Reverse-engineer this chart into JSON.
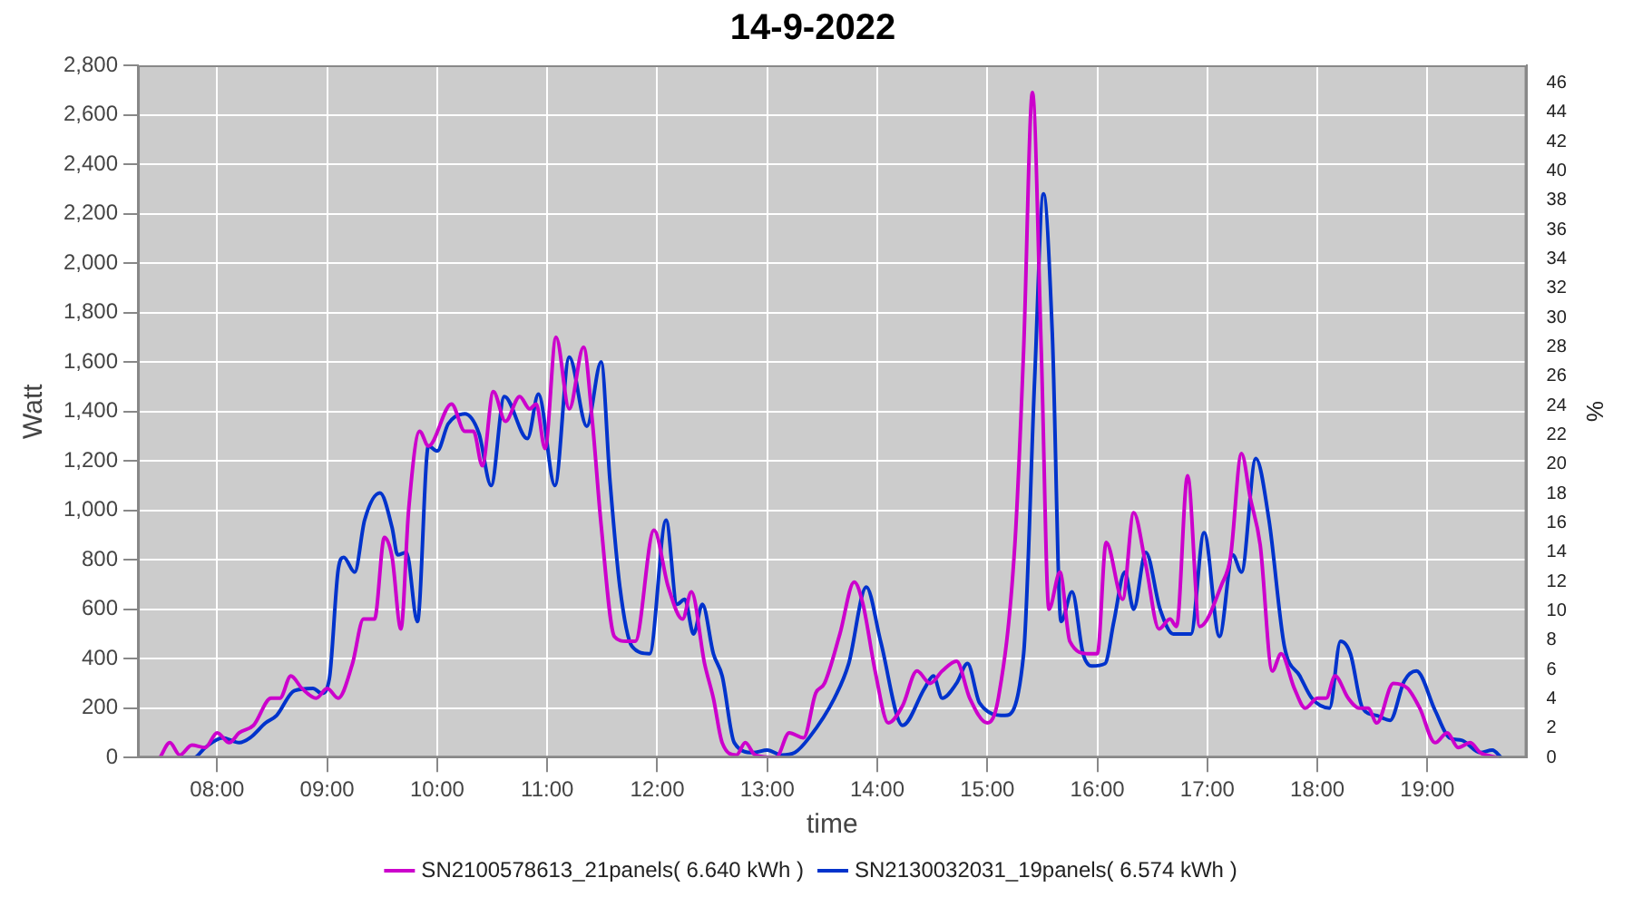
{
  "chart_data": {
    "type": "line",
    "title": "14-9-2022",
    "xlabel": "time",
    "ylabel": "Watt",
    "y2label": "%",
    "xlim": [
      7.28,
      19.9
    ],
    "xticks": [
      {
        "value": 8,
        "label": "08:00"
      },
      {
        "value": 9,
        "label": "09:00"
      },
      {
        "value": 10,
        "label": "10:00"
      },
      {
        "value": 11,
        "label": "11:00"
      },
      {
        "value": 12,
        "label": "12:00"
      },
      {
        "value": 13,
        "label": "13:00"
      },
      {
        "value": 14,
        "label": "14:00"
      },
      {
        "value": 15,
        "label": "15:00"
      },
      {
        "value": 16,
        "label": "16:00"
      },
      {
        "value": 17,
        "label": "17:00"
      },
      {
        "value": 18,
        "label": "18:00"
      },
      {
        "value": 19,
        "label": "19:00"
      }
    ],
    "ylim": [
      0,
      2800
    ],
    "yticks": [
      0,
      200,
      400,
      600,
      800,
      {
        "value": 1000,
        "label": "1,000"
      },
      {
        "value": 1200,
        "label": "1,200"
      },
      {
        "value": 1400,
        "label": "1,400"
      },
      {
        "value": 1600,
        "label": "1,600"
      },
      {
        "value": 1800,
        "label": "1,800"
      },
      {
        "value": 2000,
        "label": "2,000"
      },
      {
        "value": 2200,
        "label": "2,200"
      },
      {
        "value": 2400,
        "label": "2,400"
      },
      {
        "value": 2600,
        "label": "2,600"
      },
      {
        "value": 2800,
        "label": "2,800"
      }
    ],
    "y2lim": [
      0,
      47.2
    ],
    "y2ticks": [
      0,
      2,
      4,
      6,
      8,
      10,
      12,
      14,
      16,
      18,
      20,
      22,
      24,
      26,
      28,
      30,
      32,
      34,
      36,
      38,
      40,
      42,
      44,
      46
    ],
    "grid": true,
    "legend": "bottom",
    "series": [
      {
        "name": "SN2100578613_21panels( 6.640 kWh )",
        "color": "#cc00cc",
        "x": [
          7.48,
          7.57,
          7.66,
          7.77,
          7.89,
          8.0,
          8.11,
          8.2,
          8.33,
          8.49,
          8.57,
          8.67,
          8.77,
          8.9,
          9.0,
          9.1,
          9.23,
          9.33,
          9.43,
          9.52,
          9.59,
          9.67,
          9.74,
          9.84,
          9.92,
          10.13,
          10.25,
          10.33,
          10.41,
          10.51,
          10.62,
          10.75,
          10.84,
          10.9,
          10.98,
          11.08,
          11.2,
          11.33,
          11.41,
          11.49,
          11.61,
          11.72,
          11.8,
          11.97,
          12.1,
          12.23,
          12.31,
          12.43,
          12.51,
          12.59,
          12.72,
          12.8,
          12.89,
          13.08,
          13.2,
          13.33,
          13.44,
          13.52,
          13.66,
          13.79,
          13.87,
          13.98,
          14.1,
          14.23,
          14.36,
          14.48,
          14.59,
          14.72,
          14.84,
          15.0,
          15.1,
          15.25,
          15.33,
          15.41,
          15.49,
          15.56,
          15.66,
          15.75,
          15.92,
          16.0,
          16.08,
          16.23,
          16.33,
          16.44,
          16.56,
          16.66,
          16.72,
          16.82,
          16.93,
          17.13,
          17.21,
          17.31,
          17.39,
          17.48,
          17.59,
          17.67,
          17.79,
          17.89,
          18.0,
          18.08,
          18.16,
          18.28,
          18.38,
          18.46,
          18.54,
          18.69,
          18.82,
          18.93,
          19.07,
          19.18,
          19.28,
          19.39,
          19.48,
          19.64
        ],
        "values": [
          0,
          60,
          10,
          50,
          40,
          100,
          60,
          100,
          130,
          240,
          240,
          330,
          280,
          240,
          280,
          240,
          380,
          560,
          560,
          890,
          810,
          520,
          1000,
          1320,
          1260,
          1430,
          1320,
          1320,
          1180,
          1480,
          1360,
          1460,
          1410,
          1430,
          1250,
          1700,
          1410,
          1660,
          1360,
          940,
          490,
          470,
          470,
          920,
          690,
          560,
          670,
          380,
          240,
          60,
          10,
          60,
          10,
          0,
          100,
          80,
          260,
          300,
          500,
          710,
          620,
          350,
          140,
          210,
          350,
          300,
          350,
          390,
          240,
          140,
          240,
          860,
          1650,
          2690,
          1650,
          600,
          750,
          470,
          420,
          420,
          870,
          640,
          990,
          780,
          520,
          560,
          530,
          1140,
          530,
          700,
          810,
          1230,
          1050,
          860,
          350,
          420,
          280,
          200,
          240,
          240,
          330,
          240,
          200,
          200,
          140,
          300,
          280,
          200,
          60,
          100,
          40,
          60,
          20,
          0
        ]
      },
      {
        "name": "SN2130032031_19panels( 6.574 kWh )",
        "color": "#0033cc",
        "x": [
          7.67,
          7.79,
          7.89,
          8.05,
          8.2,
          8.3,
          8.44,
          8.54,
          8.7,
          8.87,
          8.95,
          9.02,
          9.1,
          9.15,
          9.25,
          9.34,
          9.48,
          9.59,
          9.64,
          9.72,
          9.82,
          9.92,
          10.0,
          10.1,
          10.25,
          10.38,
          10.49,
          10.61,
          10.82,
          10.92,
          11.07,
          11.2,
          11.36,
          11.49,
          11.57,
          11.66,
          11.77,
          11.93,
          12.08,
          12.18,
          12.25,
          12.33,
          12.41,
          12.51,
          12.59,
          12.7,
          12.87,
          13.0,
          13.13,
          13.25,
          13.38,
          13.61,
          13.74,
          13.9,
          14.03,
          14.23,
          14.43,
          14.51,
          14.59,
          14.72,
          14.82,
          14.93,
          15.16,
          15.33,
          15.43,
          15.51,
          15.59,
          15.67,
          15.77,
          15.87,
          15.95,
          16.07,
          16.15,
          16.25,
          16.33,
          16.44,
          16.57,
          16.69,
          16.85,
          16.97,
          17.11,
          17.23,
          17.31,
          17.44,
          17.56,
          17.7,
          17.84,
          17.95,
          18.11,
          18.21,
          18.3,
          18.41,
          18.54,
          18.66,
          18.79,
          18.9,
          19.07,
          19.2,
          19.31,
          19.48,
          19.59,
          19.67
        ],
        "values": [
          0,
          0,
          40,
          80,
          60,
          80,
          140,
          170,
          270,
          280,
          260,
          320,
          760,
          810,
          750,
          960,
          1070,
          930,
          820,
          830,
          550,
          1260,
          1240,
          1350,
          1390,
          1310,
          1100,
          1460,
          1290,
          1470,
          1100,
          1620,
          1340,
          1600,
          1120,
          690,
          450,
          420,
          960,
          620,
          640,
          500,
          620,
          420,
          330,
          60,
          20,
          30,
          10,
          20,
          80,
          240,
          380,
          690,
          470,
          130,
          280,
          330,
          240,
          300,
          380,
          220,
          170,
          420,
          1530,
          2280,
          1720,
          550,
          670,
          420,
          370,
          380,
          550,
          750,
          600,
          830,
          600,
          500,
          500,
          910,
          490,
          820,
          750,
          1210,
          960,
          450,
          330,
          240,
          200,
          470,
          420,
          200,
          170,
          150,
          310,
          350,
          190,
          80,
          70,
          20,
          30,
          0
        ]
      }
    ]
  }
}
